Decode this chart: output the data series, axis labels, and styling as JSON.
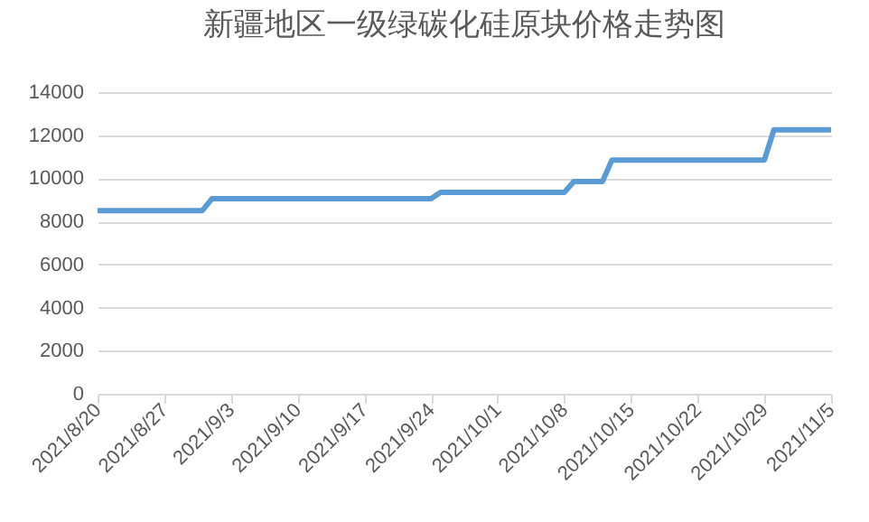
{
  "chart_data": {
    "type": "line",
    "title": "新疆地区一级绿碳化硅原块价格走势图",
    "x": [
      "2021-08-20",
      "2021-08-31",
      "2021-09-01",
      "2021-09-24",
      "2021-09-25",
      "2021-10-08",
      "2021-10-09",
      "2021-10-12",
      "2021-10-13",
      "2021-10-29",
      "2021-10-30",
      "2021-11-05"
    ],
    "series": [
      {
        "color": "#5b9bd5",
        "values": [
          8500,
          8500,
          9050,
          9050,
          9350,
          9350,
          9850,
          9850,
          10850,
          10850,
          12250,
          12250
        ]
      }
    ],
    "xlim": [
      "2021-08-20",
      "2021-11-05"
    ],
    "xticks": [
      {
        "value": "2021-08-20",
        "label": "2021/8/20"
      },
      {
        "value": "2021-08-27",
        "label": "2021/8/27"
      },
      {
        "value": "2021-09-03",
        "label": "2021/9/3"
      },
      {
        "value": "2021-09-10",
        "label": "2021/9/10"
      },
      {
        "value": "2021-09-17",
        "label": "2021/9/17"
      },
      {
        "value": "2021-09-24",
        "label": "2021/9/24"
      },
      {
        "value": "2021-10-01",
        "label": "2021/10/1"
      },
      {
        "value": "2021-10-08",
        "label": "2021/10/8"
      },
      {
        "value": "2021-10-15",
        "label": "2021/10/15"
      },
      {
        "value": "2021-10-22",
        "label": "2021/10/22"
      },
      {
        "value": "2021-10-29",
        "label": "2021/10/29"
      },
      {
        "value": "2021-11-05",
        "label": "2021/11/5"
      }
    ],
    "ylim": [
      0,
      14000
    ],
    "yticks": [
      0,
      2000,
      4000,
      6000,
      8000,
      10000,
      12000,
      14000
    ],
    "grid": "y",
    "legend": false,
    "marker": "none",
    "line_style": "solid"
  }
}
